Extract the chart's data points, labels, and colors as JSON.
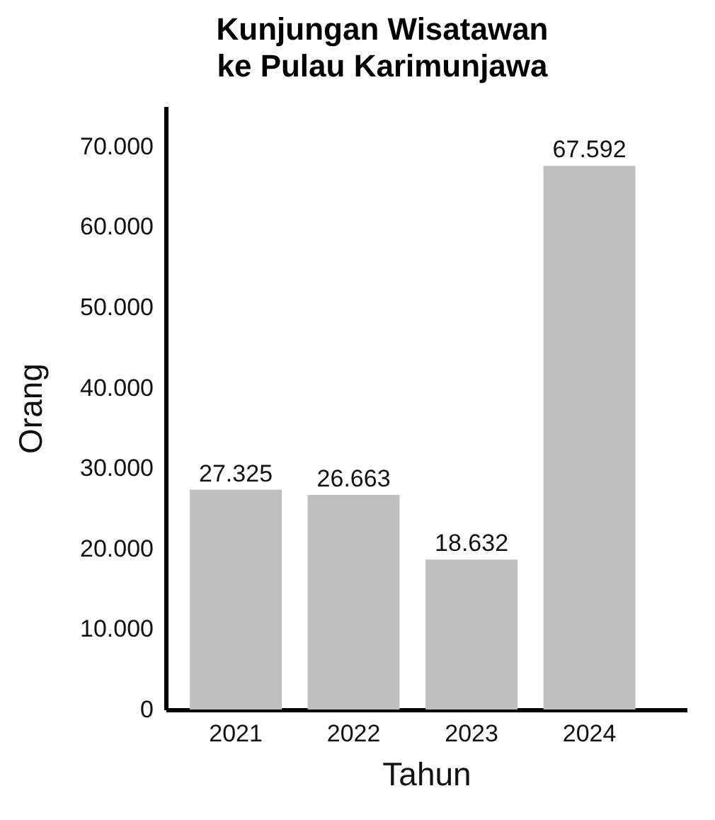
{
  "chart_data": {
    "type": "bar",
    "title": "Kunjungan Wisatawan\nke Pulau Karimunjawa",
    "xlabel": "Tahun",
    "ylabel": "Orang",
    "categories": [
      "2021",
      "2022",
      "2023",
      "2024"
    ],
    "values": [
      27325,
      26663,
      18632,
      67592
    ],
    "value_labels": [
      "27.325",
      "26.663",
      "18.632",
      "67.592"
    ],
    "color": "#bfbfbf",
    "ylim": [
      0,
      75000
    ],
    "yticks": [
      0,
      {
        "value": 10000,
        "label": "10.000"
      },
      {
        "value": 20000,
        "label": "20.000"
      },
      {
        "value": 30000,
        "label": "30.000"
      },
      {
        "value": 40000,
        "label": "40.000"
      },
      {
        "value": 50000,
        "label": "50.000"
      },
      {
        "value": 60000,
        "label": "60.000"
      },
      {
        "value": 70000,
        "label": "70.000"
      }
    ]
  }
}
